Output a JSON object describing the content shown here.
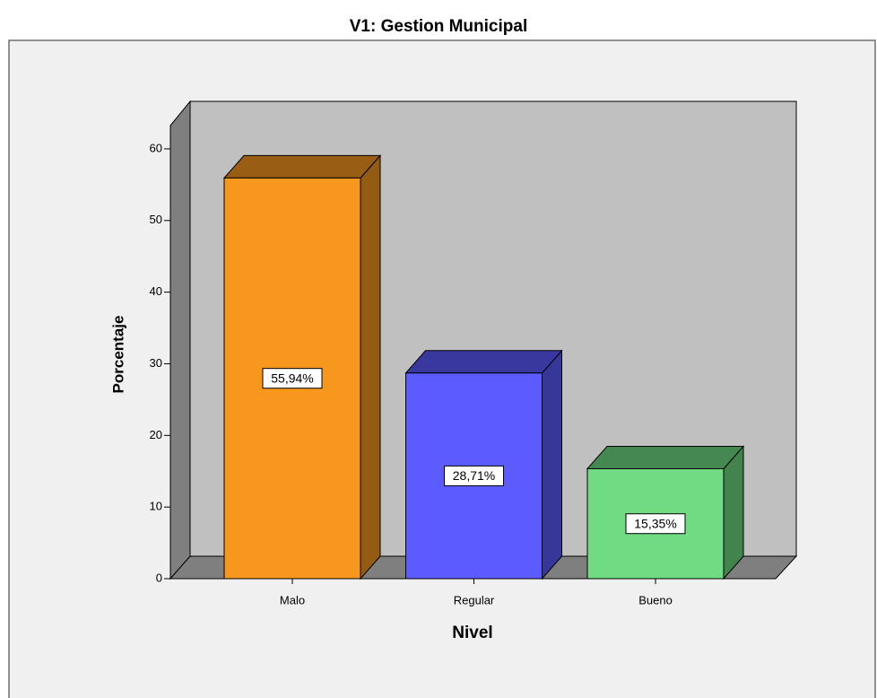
{
  "chart_data": {
    "type": "bar3d",
    "title": "V1: Gestion Municipal",
    "xlabel": "Nivel",
    "ylabel": "Porcentaje",
    "categories": [
      "Malo",
      "Regular",
      "Bueno"
    ],
    "values": [
      55.94,
      28.71,
      15.35
    ],
    "value_labels": [
      "55,94%",
      "28,71%",
      "15,35%"
    ],
    "colors": [
      "#f7971e",
      "#5b5bff",
      "#70db82"
    ],
    "ylim": [
      0,
      63
    ],
    "yticks": [
      0,
      10,
      20,
      30,
      40,
      50,
      60
    ]
  }
}
